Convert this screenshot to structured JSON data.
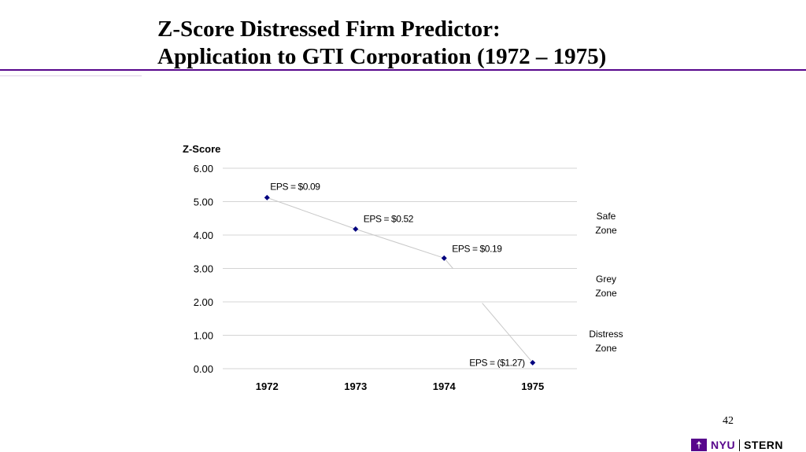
{
  "slide": {
    "title_line1": "Z-Score Distressed Firm Predictor:",
    "title_line2": "Application to GTI Corporation (1972 – 1975)",
    "page_number": "42",
    "logo_nyu": "NYU",
    "logo_stern": "STERN",
    "accent_color": "#57068c"
  },
  "chart_data": {
    "type": "scatter",
    "ylabel": "Z-Score",
    "ylim": [
      0,
      6
    ],
    "yticks": [
      "0.00",
      "1.00",
      "2.00",
      "3.00",
      "4.00",
      "5.00",
      "6.00"
    ],
    "categories": [
      "1972",
      "1973",
      "1974",
      "1975"
    ],
    "values": [
      5.12,
      4.18,
      3.31,
      0.18
    ],
    "point_labels": [
      "EPS = $0.09",
      "EPS = $0.52",
      "EPS = $0.19",
      "EPS = ($1.27)"
    ],
    "zones": [
      {
        "line1": "Safe",
        "line2": "Zone"
      },
      {
        "line1": "Grey",
        "line2": "Zone"
      },
      {
        "line1": "Distress",
        "line2": "Zone"
      }
    ],
    "grid": true,
    "marker_color": "#00007f"
  }
}
